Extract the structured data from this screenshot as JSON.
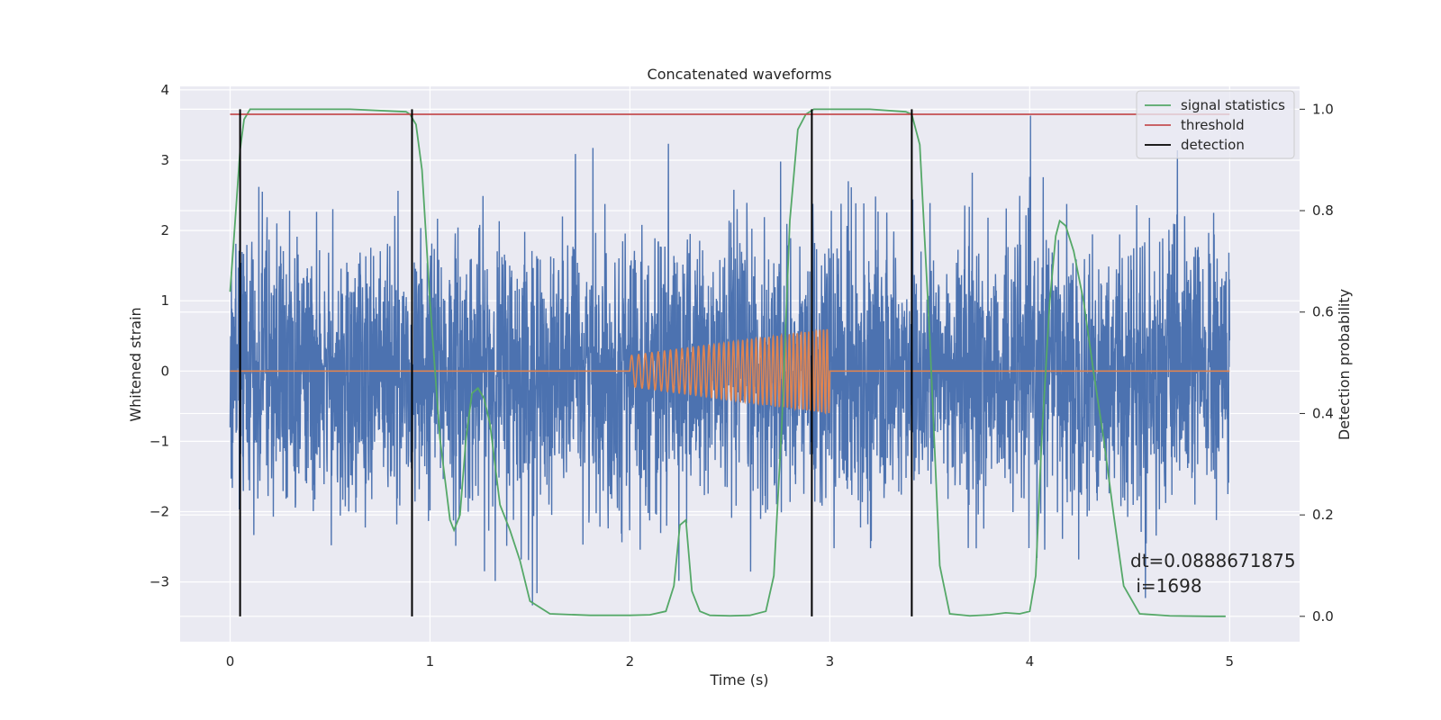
{
  "chart_data": {
    "type": "line",
    "title": "Concatenated waveforms",
    "xlabel": "Time (s)",
    "ylabel": "Whitened strain",
    "ylabel_right": "Detection probability",
    "xlim": [
      -0.25,
      5.35
    ],
    "ylim": [
      -3.85,
      4.05
    ],
    "ylim_right": [
      -0.05,
      1.045
    ],
    "x_ticks": [
      0,
      1,
      2,
      3,
      4,
      5
    ],
    "x_tick_labels": [
      "0",
      "1",
      "2",
      "3",
      "4",
      "5"
    ],
    "y_ticks": [
      -3,
      -2,
      -1,
      0,
      1,
      2,
      3,
      4
    ],
    "y_tick_labels": [
      "−3",
      "−2",
      "−1",
      "0",
      "1",
      "2",
      "3",
      "4"
    ],
    "y_right_ticks": [
      0.0,
      0.2,
      0.4,
      0.6,
      0.8,
      1.0
    ],
    "y_right_tick_labels": [
      "0.0",
      "0.2",
      "0.4",
      "0.6",
      "0.8",
      "1.0"
    ],
    "grid": true,
    "legend_position": "top-right",
    "legend": [
      {
        "label": "signal statistics",
        "color": "#55a868"
      },
      {
        "label": "threshold",
        "color": "#c44e52"
      },
      {
        "label": "detection",
        "color": "#000000"
      }
    ],
    "series": [
      {
        "role": "noisy strain",
        "axis": "left",
        "color": "#4c72b0",
        "x_range": [
          0,
          5
        ],
        "approx_envelope": [
          -3.5,
          3.7
        ]
      },
      {
        "role": "injected chirp",
        "axis": "left",
        "color": "#dd8452",
        "x_range": [
          0,
          5
        ],
        "chirp_x_range": [
          2,
          3
        ],
        "chirp_amplitude_range": [
          0.22,
          0.6
        ]
      },
      {
        "name": "signal statistics",
        "axis": "right",
        "color": "#55a868",
        "x": [
          0.0,
          0.02,
          0.05,
          0.07,
          0.1,
          0.3,
          0.6,
          0.88,
          0.9,
          0.93,
          0.96,
          1.0,
          1.05,
          1.1,
          1.12,
          1.15,
          1.18,
          1.21,
          1.24,
          1.27,
          1.3,
          1.35,
          1.4,
          1.45,
          1.5,
          1.6,
          1.8,
          2.0,
          2.1,
          2.18,
          2.22,
          2.25,
          2.28,
          2.31,
          2.35,
          2.4,
          2.5,
          2.6,
          2.68,
          2.72,
          2.76,
          2.8,
          2.84,
          2.88,
          2.92,
          3.0,
          3.2,
          3.38,
          3.41,
          3.45,
          3.5,
          3.55,
          3.6,
          3.7,
          3.8,
          3.88,
          3.95,
          4.0,
          4.03,
          4.06,
          4.1,
          4.13,
          4.15,
          4.18,
          4.22,
          4.27,
          4.32,
          4.37,
          4.42,
          4.47,
          4.55,
          4.7,
          4.9,
          4.98
        ],
        "y": [
          0.64,
          0.75,
          0.92,
          0.98,
          1.0,
          1.0,
          1.0,
          0.995,
          0.99,
          0.97,
          0.88,
          0.62,
          0.35,
          0.19,
          0.17,
          0.2,
          0.35,
          0.44,
          0.45,
          0.43,
          0.38,
          0.22,
          0.17,
          0.11,
          0.03,
          0.005,
          0.002,
          0.002,
          0.003,
          0.01,
          0.06,
          0.18,
          0.19,
          0.05,
          0.01,
          0.002,
          0.001,
          0.002,
          0.01,
          0.08,
          0.38,
          0.78,
          0.96,
          0.99,
          1.0,
          1.0,
          1.0,
          0.995,
          0.99,
          0.93,
          0.55,
          0.1,
          0.005,
          0.001,
          0.003,
          0.007,
          0.005,
          0.01,
          0.08,
          0.35,
          0.62,
          0.75,
          0.78,
          0.77,
          0.72,
          0.62,
          0.48,
          0.35,
          0.2,
          0.06,
          0.005,
          0.001,
          0.0,
          0.0
        ]
      },
      {
        "name": "threshold",
        "axis": "right",
        "color": "#c44e52",
        "x": [
          0,
          5
        ],
        "y": [
          0.99,
          0.99
        ]
      },
      {
        "name": "detection",
        "axis": "right",
        "color": "#000000",
        "vertical_lines_x": [
          0.05,
          0.91,
          2.91,
          3.41
        ],
        "y_range": [
          0.0,
          1.0
        ]
      }
    ],
    "annotations": [
      "dt=0.0888671875",
      " i=1698"
    ]
  }
}
